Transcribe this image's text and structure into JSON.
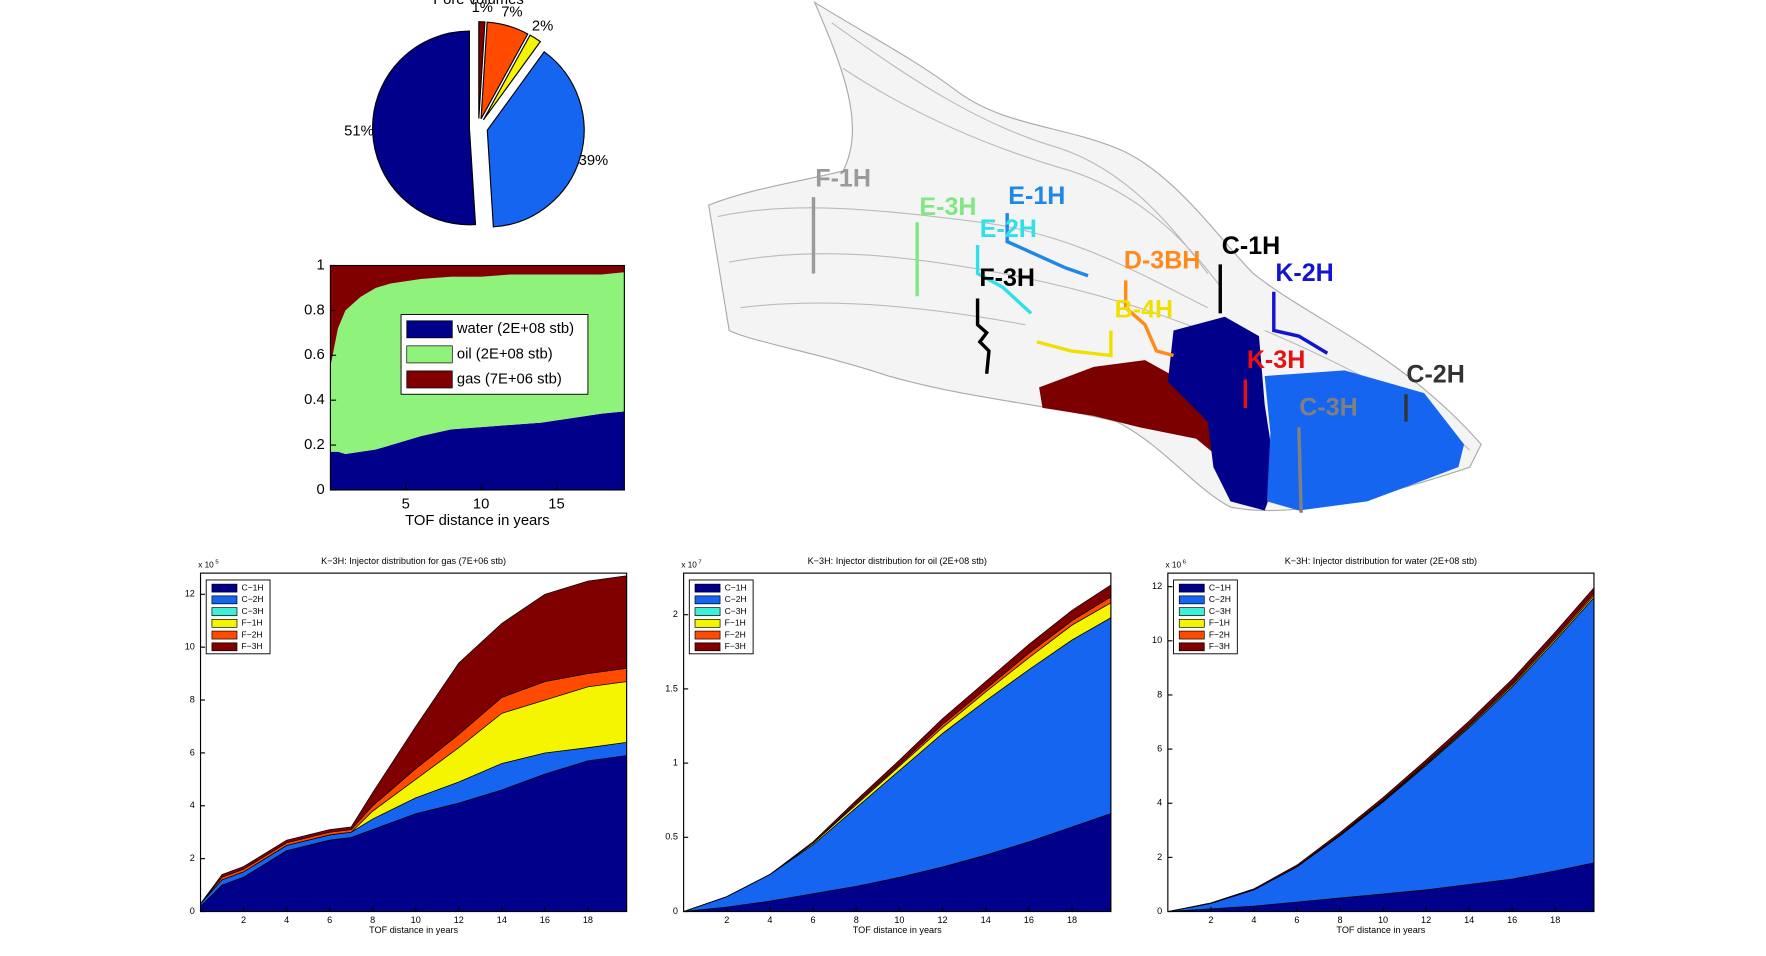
{
  "chart_data": [
    {
      "type": "pie",
      "title": "Pore volumes",
      "values": [
        1,
        7,
        2,
        39,
        51
      ],
      "value_labels": [
        "1%",
        "7%",
        "2%",
        "39%",
        "51%"
      ],
      "colors": [
        "#800000",
        "#ff4a00",
        "#f5f500",
        "#1565f0",
        "#00008a"
      ]
    },
    {
      "type": "area",
      "xlabel": "TOF distance in years",
      "x": [
        0,
        0.5,
        1,
        2,
        3,
        4,
        5,
        6,
        8,
        10,
        12,
        14,
        16,
        18,
        19.5
      ],
      "series": [
        {
          "name": "water (2E+08 stb)",
          "color": "#00008a",
          "values": [
            0.17,
            0.17,
            0.16,
            0.17,
            0.18,
            0.2,
            0.22,
            0.24,
            0.27,
            0.28,
            0.29,
            0.3,
            0.32,
            0.34,
            0.35
          ]
        },
        {
          "name": "oil (2E+08 stb)",
          "color": "#8ff27a",
          "values": [
            0.38,
            0.55,
            0.64,
            0.69,
            0.72,
            0.72,
            0.71,
            0.7,
            0.68,
            0.67,
            0.67,
            0.66,
            0.64,
            0.62,
            0.62
          ]
        },
        {
          "name": "gas (7E+06 stb)",
          "color": "#800000",
          "values": [
            0.45,
            0.28,
            0.2,
            0.14,
            0.1,
            0.08,
            0.07,
            0.06,
            0.05,
            0.05,
            0.04,
            0.04,
            0.04,
            0.04,
            0.03
          ]
        }
      ],
      "xlim": [
        0,
        19.5
      ],
      "ylim": [
        0,
        1
      ],
      "xticks": [
        5,
        10,
        15
      ],
      "yticks": [
        0,
        0.2,
        0.4,
        0.6,
        0.8,
        1
      ],
      "legend": "center"
    },
    {
      "type": "area",
      "title": "K−3H: Injector distribution for gas (7E+06 stb)",
      "xlabel": "TOF distance in years",
      "y_multiplier": "x 10",
      "y_multiplier_exponent": "5",
      "x": [
        0,
        1,
        2,
        4,
        6,
        7,
        8,
        10,
        12,
        14,
        16,
        18,
        19.8
      ],
      "series": [
        {
          "name": "C−1H",
          "color": "#00008a",
          "values": [
            0.2,
            1.0,
            1.3,
            2.3,
            2.7,
            2.8,
            3.1,
            3.7,
            4.1,
            4.6,
            5.2,
            5.7,
            5.9
          ]
        },
        {
          "name": "C−2H",
          "color": "#1565f0",
          "values": [
            0.1,
            0.2,
            0.2,
            0.2,
            0.2,
            0.2,
            0.4,
            0.6,
            0.8,
            1.0,
            0.8,
            0.5,
            0.5
          ]
        },
        {
          "name": "C−3H",
          "color": "#3ff0d8",
          "values": [
            0,
            0,
            0,
            0,
            0,
            0,
            0,
            0,
            0,
            0,
            0,
            0,
            0
          ]
        },
        {
          "name": "F−1H",
          "color": "#f5f500",
          "values": [
            0,
            0,
            0,
            0,
            0,
            0,
            0.3,
            0.7,
            1.3,
            1.9,
            2.0,
            2.3,
            2.3
          ]
        },
        {
          "name": "F−2H",
          "color": "#ff4a00",
          "values": [
            0,
            0.1,
            0.1,
            0.1,
            0.1,
            0.1,
            0.2,
            0.4,
            0.5,
            0.6,
            0.7,
            0.5,
            0.5
          ]
        },
        {
          "name": "F−3H",
          "color": "#800000",
          "values": [
            0,
            0.1,
            0.1,
            0.1,
            0.1,
            0.1,
            0.5,
            1.6,
            2.7,
            2.8,
            3.3,
            3.5,
            3.5
          ]
        }
      ],
      "xlim": [
        0,
        19.8
      ],
      "ylim": [
        0,
        12.8
      ],
      "xticks": [
        2,
        4,
        6,
        8,
        10,
        12,
        14,
        16,
        18
      ],
      "yticks": [
        0,
        2,
        4,
        6,
        8,
        10,
        12
      ],
      "legend": "upper left"
    },
    {
      "type": "area",
      "title": "K−3H: Injector distribution for oil (2E+08 stb)",
      "xlabel": "TOF distance in years",
      "y_multiplier": "x 10",
      "y_multiplier_exponent": "7",
      "x": [
        0,
        2,
        4,
        6,
        8,
        10,
        12,
        14,
        16,
        18,
        19.8
      ],
      "series": [
        {
          "name": "C−1H",
          "color": "#00008a",
          "values": [
            0,
            0.03,
            0.07,
            0.12,
            0.17,
            0.23,
            0.3,
            0.38,
            0.47,
            0.57,
            0.66
          ]
        },
        {
          "name": "C−2H",
          "color": "#1565f0",
          "values": [
            0,
            0.07,
            0.18,
            0.33,
            0.53,
            0.72,
            0.9,
            1.04,
            1.16,
            1.26,
            1.32
          ]
        },
        {
          "name": "C−3H",
          "color": "#3ff0d8",
          "values": [
            0,
            0,
            0,
            0,
            0,
            0,
            0,
            0,
            0,
            0,
            0
          ]
        },
        {
          "name": "F−1H",
          "color": "#f5f500",
          "values": [
            0,
            0,
            0,
            0.01,
            0.02,
            0.03,
            0.04,
            0.06,
            0.08,
            0.1,
            0.1
          ]
        },
        {
          "name": "F−2H",
          "color": "#ff4a00",
          "values": [
            0,
            0,
            0,
            0,
            0.01,
            0.01,
            0.02,
            0.02,
            0.03,
            0.03,
            0.04
          ]
        },
        {
          "name": "F−3H",
          "color": "#800000",
          "values": [
            0,
            0,
            0,
            0.01,
            0.02,
            0.03,
            0.04,
            0.05,
            0.06,
            0.07,
            0.08
          ]
        }
      ],
      "xlim": [
        0,
        19.8
      ],
      "ylim": [
        0,
        2.28
      ],
      "xticks": [
        2,
        4,
        6,
        8,
        10,
        12,
        14,
        16,
        18
      ],
      "yticks": [
        0,
        0.5,
        1,
        1.5,
        2
      ],
      "legend": "upper left"
    },
    {
      "type": "area",
      "title": "K−3H: Injector distribution for water (2E+08 stb)",
      "xlabel": "TOF distance in years",
      "y_multiplier": "x 10",
      "y_multiplier_exponent": "6",
      "x": [
        0,
        2,
        4,
        6,
        8,
        10,
        12,
        14,
        16,
        18,
        19.8
      ],
      "series": [
        {
          "name": "C−1H",
          "color": "#00008a",
          "values": [
            0,
            0.1,
            0.2,
            0.35,
            0.5,
            0.65,
            0.8,
            1.0,
            1.2,
            1.5,
            1.8
          ]
        },
        {
          "name": "C−2H",
          "color": "#1565f0",
          "values": [
            0,
            0.2,
            0.6,
            1.3,
            2.3,
            3.4,
            4.6,
            5.8,
            7.1,
            8.5,
            9.8
          ]
        },
        {
          "name": "C−3H",
          "color": "#3ff0d8",
          "values": [
            0,
            0,
            0,
            0,
            0,
            0,
            0,
            0,
            0,
            0,
            0
          ]
        },
        {
          "name": "F−1H",
          "color": "#f5f500",
          "values": [
            0,
            0,
            0,
            0,
            0.02,
            0.03,
            0.04,
            0.05,
            0.06,
            0.07,
            0.08
          ]
        },
        {
          "name": "F−2H",
          "color": "#ff4a00",
          "values": [
            0,
            0,
            0,
            0.01,
            0.02,
            0.03,
            0.04,
            0.05,
            0.06,
            0.07,
            0.08
          ]
        },
        {
          "name": "F−3H",
          "color": "#800000",
          "values": [
            0,
            0.02,
            0.04,
            0.06,
            0.08,
            0.1,
            0.12,
            0.14,
            0.16,
            0.18,
            0.2
          ]
        }
      ],
      "xlim": [
        0,
        19.8
      ],
      "ylim": [
        0,
        12.5
      ],
      "xticks": [
        2,
        4,
        6,
        8,
        10,
        12,
        14,
        16,
        18
      ],
      "yticks": [
        0,
        2,
        4,
        6,
        8,
        10,
        12
      ],
      "legend": "upper left"
    }
  ],
  "reservoir_view": {
    "wells": [
      {
        "label": "F-1H",
        "color": "#9a9a9a"
      },
      {
        "label": "E-3H",
        "color": "#80e880"
      },
      {
        "label": "E-1H",
        "color": "#1e88e8"
      },
      {
        "label": "E-2H",
        "color": "#30e0e8"
      },
      {
        "label": "F-3H",
        "color": "#000000"
      },
      {
        "label": "D-3BH",
        "color": "#ff8a1a"
      },
      {
        "label": "B-4H",
        "color": "#f0e000"
      },
      {
        "label": "C-1H",
        "color": "#000000"
      },
      {
        "label": "K-2H",
        "color": "#1414d0"
      },
      {
        "label": "K-3H",
        "color": "#e81010"
      },
      {
        "label": "C-3H",
        "color": "#808080"
      },
      {
        "label": "C-2H",
        "color": "#333333"
      }
    ]
  }
}
